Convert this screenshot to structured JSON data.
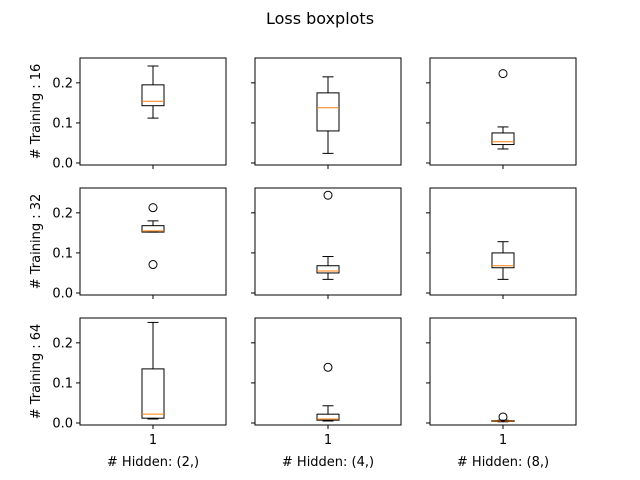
{
  "chart_data": {
    "type": "boxplot",
    "title": "Loss boxplots",
    "ylim": [
      -0.005,
      0.262
    ],
    "yticks": [
      0.0,
      0.1,
      0.2
    ],
    "ytick_labels": [
      "0.0",
      "0.1",
      "0.2"
    ],
    "xtick_label": "1",
    "row_labels": [
      "# Training : 16",
      "# Training : 32",
      "# Training : 64"
    ],
    "col_labels": [
      "# Hidden: (2,)",
      "# Hidden: (4,)",
      "# Hidden: (8,)"
    ],
    "box_color": "#000000",
    "median_color": "#ff7f0e",
    "panels": [
      [
        {
          "whisker_low": 0.112,
          "q1": 0.143,
          "median": 0.154,
          "q3": 0.195,
          "whisker_high": 0.242,
          "fliers": []
        },
        {
          "whisker_low": 0.024,
          "q1": 0.08,
          "median": 0.138,
          "q3": 0.175,
          "whisker_high": 0.215,
          "fliers": []
        },
        {
          "whisker_low": 0.035,
          "q1": 0.046,
          "median": 0.053,
          "q3": 0.075,
          "whisker_high": 0.09,
          "fliers": [
            0.223
          ]
        }
      ],
      [
        {
          "whisker_low": 0.152,
          "q1": 0.152,
          "median": 0.155,
          "q3": 0.168,
          "whisker_high": 0.18,
          "fliers": [
            0.213,
            0.071
          ]
        },
        {
          "whisker_low": 0.034,
          "q1": 0.05,
          "median": 0.055,
          "q3": 0.068,
          "whisker_high": 0.091,
          "fliers": [
            0.244
          ]
        },
        {
          "whisker_low": 0.034,
          "q1": 0.063,
          "median": 0.068,
          "q3": 0.1,
          "whisker_high": 0.128,
          "fliers": []
        }
      ],
      [
        {
          "whisker_low": 0.01,
          "q1": 0.012,
          "median": 0.022,
          "q3": 0.135,
          "whisker_high": 0.251,
          "fliers": []
        },
        {
          "whisker_low": 0.005,
          "q1": 0.007,
          "median": 0.01,
          "q3": 0.022,
          "whisker_high": 0.043,
          "fliers": [
            0.139
          ]
        },
        {
          "whisker_low": 0.003,
          "q1": 0.004,
          "median": 0.005,
          "q3": 0.006,
          "whisker_high": 0.007,
          "fliers": [
            0.015
          ]
        }
      ]
    ]
  }
}
